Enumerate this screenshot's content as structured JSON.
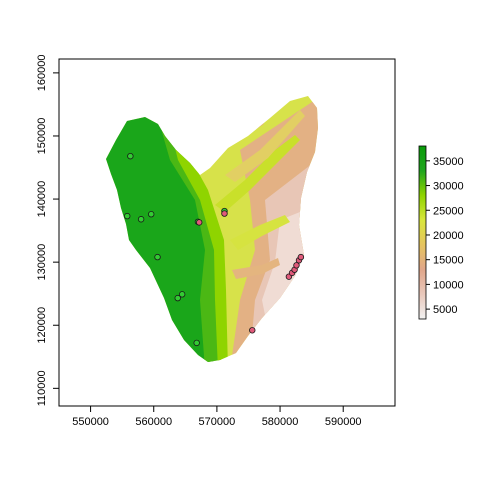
{
  "x_ticks": [
    "550000",
    "560000",
    "570000",
    "580000",
    "590000"
  ],
  "y_ticks": [
    "110000",
    "120000",
    "130000",
    "140000",
    "150000",
    "160000"
  ],
  "legend": {
    "labels": [
      "5000",
      "10000",
      "15000",
      "20000",
      "25000",
      "30000",
      "35000"
    ],
    "range": [
      3000,
      38000
    ],
    "colors": [
      "#f2f2f2",
      "#e9c8bb",
      "#e0a68a",
      "#e6c45f",
      "#d9e63c",
      "#8fd400",
      "#1fa51e",
      "#0a9b0a"
    ]
  },
  "points_green": [
    [
      556300,
      146800
    ],
    [
      558000,
      136800
    ],
    [
      555800,
      137300
    ],
    [
      559600,
      137600
    ],
    [
      560600,
      130800
    ],
    [
      564500,
      124900
    ],
    [
      563800,
      124300
    ],
    [
      566800,
      117200
    ],
    [
      571200,
      138100
    ],
    [
      567000,
      136400
    ]
  ],
  "points_pink": [
    [
      567200,
      136300
    ],
    [
      571200,
      137700
    ],
    [
      575600,
      119200
    ],
    [
      581400,
      127700
    ],
    [
      581900,
      128300
    ],
    [
      582300,
      128800
    ],
    [
      582600,
      129500
    ],
    [
      583000,
      130300
    ],
    [
      583300,
      130800
    ]
  ]
}
